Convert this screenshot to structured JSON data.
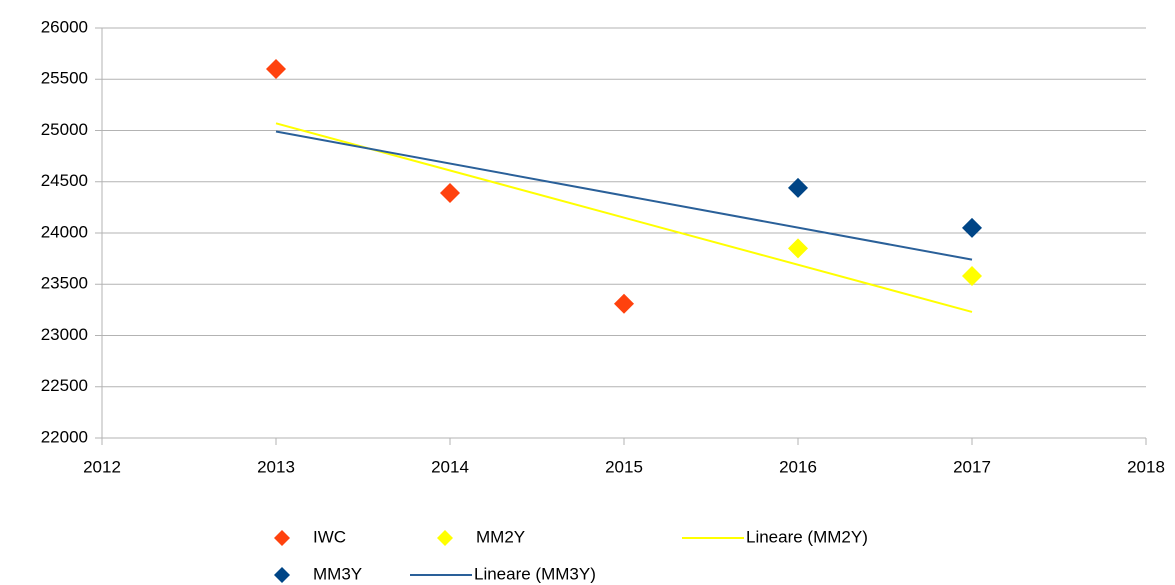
{
  "chart_data": {
    "type": "scatter",
    "xlim": [
      2012,
      2018
    ],
    "xticks": [
      2012,
      2013,
      2014,
      2015,
      2016,
      2017,
      2018
    ],
    "ylim": [
      22000,
      26000
    ],
    "yticks": [
      22000,
      22500,
      23000,
      23500,
      24000,
      24500,
      25000,
      25500,
      26000
    ],
    "grid": true,
    "series": [
      {
        "name": "IWC",
        "color": "#ff420e",
        "style": "marker",
        "x": [
          2013,
          2014,
          2015
        ],
        "values": [
          25600,
          24390,
          23310
        ]
      },
      {
        "name": "MM2Y",
        "color": "#ffff00",
        "style": "marker",
        "x": [
          2016,
          2017
        ],
        "values": [
          23850,
          23580
        ]
      },
      {
        "name": "Lineare (MM2Y)",
        "color": "#ffff00",
        "style": "line",
        "x": [
          2013,
          2017
        ],
        "values": [
          25070,
          23230
        ]
      },
      {
        "name": "MM3Y",
        "color": "#004586",
        "style": "marker",
        "x": [
          2016,
          2017
        ],
        "values": [
          24440,
          24050
        ]
      },
      {
        "name": "Lineare (MM3Y)",
        "color": "#2a6099",
        "style": "line",
        "x": [
          2013,
          2017
        ],
        "values": [
          24990,
          23740
        ]
      }
    ]
  }
}
